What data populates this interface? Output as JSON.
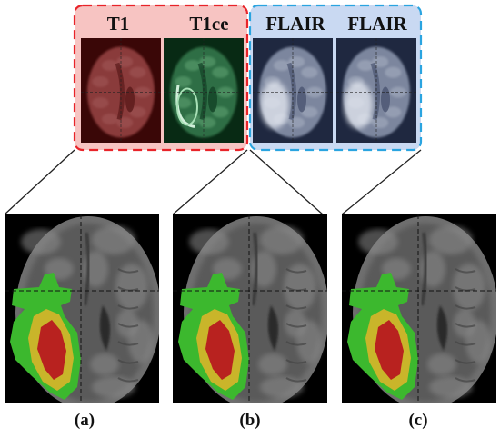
{
  "modality_group_red": {
    "labels": [
      "T1",
      "T1ce"
    ],
    "border_color": "#e8242a",
    "fill_color": "#f7c4c2"
  },
  "modality_group_blue": {
    "labels": [
      "FLAIR",
      "FLAIR"
    ],
    "border_color": "#2aa4e0",
    "fill_color": "#c9d9f2"
  },
  "captions": [
    "(a)",
    "(b)",
    "(c)"
  ],
  "colors": {
    "t1_tint": "#7a1d1d",
    "t1ce_tint": "#1e5a36",
    "flair_tint": "#6e7a96",
    "edema": "#3cb82e",
    "enhancing": "#c9b52a",
    "necrotic": "#b8221f"
  }
}
